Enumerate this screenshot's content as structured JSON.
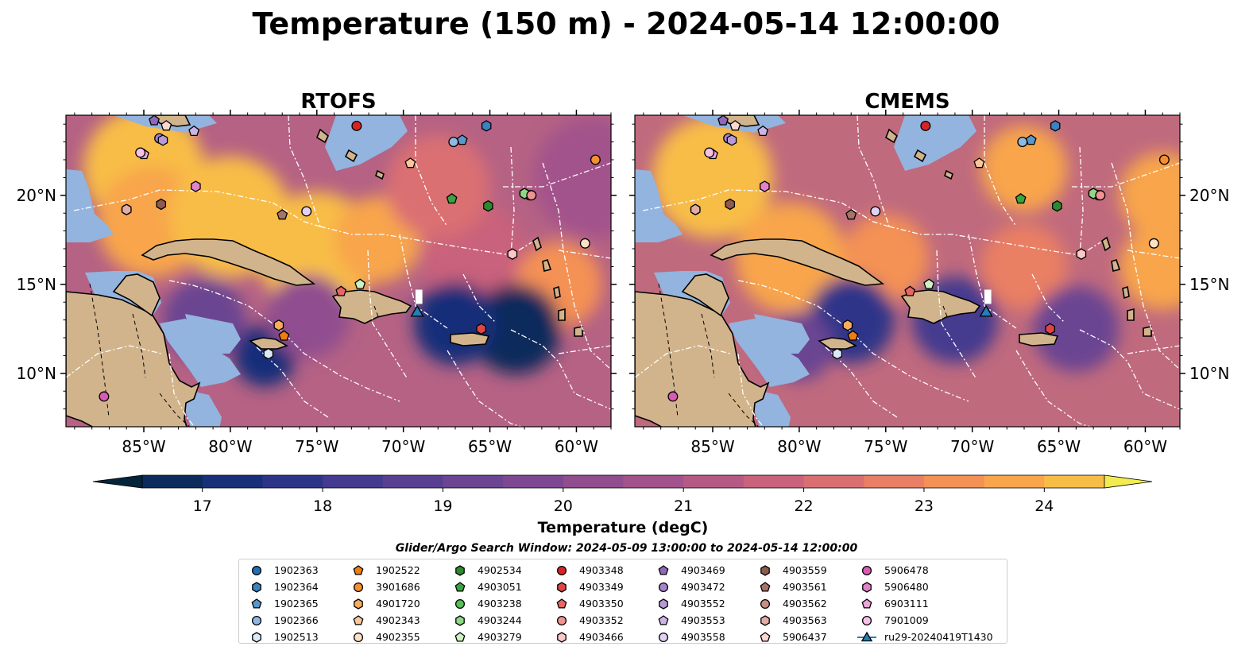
{
  "title": "Temperature (150 m) - 2024-05-14 12:00:00",
  "chart_data": {
    "type": "heatmap",
    "variable": "Temperature",
    "depth": "150 m",
    "time": "2024-05-14 12:00:00",
    "panels": [
      {
        "title": "RTOFS",
        "hotspots": [
          {
            "lon": -85.0,
            "lat": 21.5,
            "value": 24.5,
            "r": 3.5
          },
          {
            "lon": -84.5,
            "lat": 18.5,
            "value": 24.3,
            "r": 3.2
          },
          {
            "lon": -80.0,
            "lat": 18.8,
            "value": 24.6,
            "r": 3.5
          },
          {
            "lon": -75.0,
            "lat": 16.8,
            "value": 24.5,
            "r": 3.5
          },
          {
            "lon": -71.5,
            "lat": 17.5,
            "value": 24.2,
            "r": 2.5
          },
          {
            "lon": -66.0,
            "lat": 16.8,
            "value": 22.3,
            "r": 3.0
          },
          {
            "lon": -61.0,
            "lat": 15.0,
            "value": 23.5,
            "r": 2.5
          },
          {
            "lon": -63.5,
            "lat": 12.5,
            "value": 17.4,
            "r": 2.6
          },
          {
            "lon": -67.0,
            "lat": 12.8,
            "value": 17.8,
            "r": 2.4
          },
          {
            "lon": -78.0,
            "lat": 11.0,
            "value": 17.6,
            "r": 1.8
          },
          {
            "lon": -81.5,
            "lat": 13.0,
            "value": 19.5,
            "r": 2.4
          },
          {
            "lon": -75.5,
            "lat": 13.2,
            "value": 20.6,
            "r": 2.4
          },
          {
            "lon": -68.0,
            "lat": 20.5,
            "value": 22.5,
            "r": 3.0
          },
          {
            "lon": -59.0,
            "lat": 21.0,
            "value": 21.0,
            "r": 3.5
          }
        ]
      },
      {
        "title": "CMEMS",
        "hotspots": [
          {
            "lon": -85.0,
            "lat": 21.0,
            "value": 24.5,
            "r": 3.5
          },
          {
            "lon": -80.5,
            "lat": 16.5,
            "value": 24.0,
            "r": 3.2
          },
          {
            "lon": -75.0,
            "lat": 16.5,
            "value": 23.5,
            "r": 2.5
          },
          {
            "lon": -67.0,
            "lat": 21.5,
            "value": 24.0,
            "r": 2.5
          },
          {
            "lon": -59.0,
            "lat": 20.0,
            "value": 24.2,
            "r": 2.5
          },
          {
            "lon": -59.0,
            "lat": 16.0,
            "value": 24.0,
            "r": 2.5
          },
          {
            "lon": -67.0,
            "lat": 16.0,
            "value": 23.0,
            "r": 2.5
          },
          {
            "lon": -77.0,
            "lat": 13.0,
            "value": 18.0,
            "r": 2.5
          },
          {
            "lon": -71.0,
            "lat": 13.0,
            "value": 18.6,
            "r": 2.5
          },
          {
            "lon": -64.0,
            "lat": 12.5,
            "value": 19.8,
            "r": 2.5
          },
          {
            "lon": -80.0,
            "lat": 11.5,
            "value": 19.8,
            "r": 2.0
          }
        ]
      }
    ],
    "extent": {
      "lon": [
        -89.5,
        -58.0
      ],
      "lat": [
        7.0,
        24.5
      ]
    },
    "xticks": [
      {
        "lon": -85,
        "label": "85°W"
      },
      {
        "lon": -80,
        "label": "80°W"
      },
      {
        "lon": -75,
        "label": "75°W"
      },
      {
        "lon": -70,
        "label": "70°W"
      },
      {
        "lon": -65,
        "label": "65°W"
      },
      {
        "lon": -60,
        "label": "60°W"
      }
    ],
    "yticks": [
      {
        "lat": 20,
        "label": "20°N"
      },
      {
        "lat": 15,
        "label": "15°N"
      },
      {
        "lat": 10,
        "label": "10°N"
      }
    ],
    "colorbar": {
      "label": "Temperature (degC)",
      "min": 16.5,
      "max": 24.5,
      "step": 0.5,
      "ticks": [
        17,
        18,
        19,
        20,
        21,
        22,
        23,
        24
      ],
      "extend": "both",
      "colors": [
        "#03253b",
        "#0b2b5c",
        "#182f79",
        "#2d3589",
        "#443a8f",
        "#593f92",
        "#6b4492",
        "#7d4891",
        "#904e8f",
        "#a3538b",
        "#b65a85",
        "#c9627c",
        "#da6f72",
        "#e97f64",
        "#f49155",
        "#f8a54b",
        "#f8bd46",
        "#f6d445",
        "#f3ec50"
      ]
    },
    "glider": {
      "name": "ru29-20240419T1430",
      "lon": -69.2,
      "lat": 13.4,
      "track": [
        [
          -69.3,
          14.7
        ],
        [
          -68.9,
          14.7
        ],
        [
          -68.9,
          13.9
        ],
        [
          -69.3,
          13.9
        ]
      ]
    },
    "floats": [
      {
        "id": "1902363",
        "lon": -63.0,
        "lat": 20.1
      },
      {
        "id": "1902364",
        "lon": -65.2,
        "lat": 23.9
      },
      {
        "id": "1902365",
        "lon": -66.6,
        "lat": 23.1
      },
      {
        "id": "1902366",
        "lon": -67.1,
        "lat": 23.0
      },
      {
        "id": "1902513",
        "lon": -77.8,
        "lat": 11.1
      },
      {
        "id": "1902522",
        "lon": -76.9,
        "lat": 12.1
      },
      {
        "id": "3901686",
        "lon": -58.9,
        "lat": 22.0
      },
      {
        "id": "4901720",
        "lon": -77.2,
        "lat": 12.7
      },
      {
        "id": "4902343",
        "lon": -69.6,
        "lat": 21.8
      },
      {
        "id": "4902355",
        "lon": -59.5,
        "lat": 17.3
      },
      {
        "id": "4902534",
        "lon": -65.1,
        "lat": 19.4
      },
      {
        "id": "4903051",
        "lon": -67.2,
        "lat": 19.8
      },
      {
        "id": "4903238",
        "lon": -62.7,
        "lat": 20.0
      },
      {
        "id": "4903244",
        "lon": -63.0,
        "lat": 20.1
      },
      {
        "id": "4903279",
        "lon": -72.5,
        "lat": 15.0
      },
      {
        "id": "4903348",
        "lon": -72.7,
        "lat": 23.9
      },
      {
        "id": "4903349",
        "lon": -65.5,
        "lat": 12.5
      },
      {
        "id": "4903350",
        "lon": -73.6,
        "lat": 14.6
      },
      {
        "id": "4903352",
        "lon": -62.6,
        "lat": 20.0
      },
      {
        "id": "4903466",
        "lon": -63.7,
        "lat": 16.7
      },
      {
        "id": "4903469",
        "lon": -84.4,
        "lat": 24.2
      },
      {
        "id": "4903472",
        "lon": -84.1,
        "lat": 23.2
      },
      {
        "id": "4903552",
        "lon": -83.9,
        "lat": 23.1
      },
      {
        "id": "4903553",
        "lon": -82.1,
        "lat": 23.6
      },
      {
        "id": "4903558",
        "lon": -75.6,
        "lat": 19.1
      },
      {
        "id": "4903559",
        "lon": -84.0,
        "lat": 19.5
      },
      {
        "id": "4903561",
        "lon": -77.0,
        "lat": 18.9
      },
      {
        "id": "4903562",
        "lon": -86.0,
        "lat": 19.2
      },
      {
        "id": "4903563",
        "lon": -86.0,
        "lat": 19.2
      },
      {
        "id": "5906437",
        "lon": -83.7,
        "lat": 23.9
      },
      {
        "id": "5906478",
        "lon": -87.3,
        "lat": 8.7
      },
      {
        "id": "5906480",
        "lon": -82.0,
        "lat": 20.5
      },
      {
        "id": "6903111",
        "lon": -85.0,
        "lat": 22.3
      },
      {
        "id": "7901009",
        "lon": -85.2,
        "lat": 22.4
      }
    ]
  },
  "legend": {
    "title": "Glider/Argo Search Window: 2024-05-09 13:00:00 to 2024-05-14 12:00:00",
    "items": [
      {
        "label": "1902363",
        "shape": "circle",
        "color": "#1f6fb3"
      },
      {
        "label": "1902364",
        "shape": "hexagon",
        "color": "#3b82c0"
      },
      {
        "label": "1902365",
        "shape": "pentagon",
        "color": "#5a97cd"
      },
      {
        "label": "1902366",
        "shape": "circle",
        "color": "#8fb9e2"
      },
      {
        "label": "1902513",
        "shape": "hexagon",
        "color": "#dbeaf7"
      },
      {
        "label": "1902522",
        "shape": "pentagon",
        "color": "#f07d12"
      },
      {
        "label": "3901686",
        "shape": "circle",
        "color": "#f68f2f"
      },
      {
        "label": "4901720",
        "shape": "hexagon",
        "color": "#f9ac5c"
      },
      {
        "label": "4902343",
        "shape": "pentagon",
        "color": "#fbc79a"
      },
      {
        "label": "4902355",
        "shape": "circle",
        "color": "#fde1c6"
      },
      {
        "label": "4902534",
        "shape": "hexagon",
        "color": "#2b8a2f"
      },
      {
        "label": "4903051",
        "shape": "pentagon",
        "color": "#3aa53e"
      },
      {
        "label": "4903238",
        "shape": "circle",
        "color": "#58bf58"
      },
      {
        "label": "4903244",
        "shape": "hexagon",
        "color": "#8ed885"
      },
      {
        "label": "4903279",
        "shape": "pentagon",
        "color": "#cdf2c2"
      },
      {
        "label": "4903348",
        "shape": "circle",
        "color": "#d62424"
      },
      {
        "label": "4903349",
        "shape": "hexagon",
        "color": "#df4545"
      },
      {
        "label": "4903350",
        "shape": "pentagon",
        "color": "#e86666"
      },
      {
        "label": "4903352",
        "shape": "circle",
        "color": "#f29393"
      },
      {
        "label": "4903466",
        "shape": "hexagon",
        "color": "#fbc8c8"
      },
      {
        "label": "4903469",
        "shape": "pentagon",
        "color": "#8f68bb"
      },
      {
        "label": "4903472",
        "shape": "circle",
        "color": "#a685cc"
      },
      {
        "label": "4903552",
        "shape": "hexagon",
        "color": "#b89ad8"
      },
      {
        "label": "4903553",
        "shape": "pentagon",
        "color": "#ccb5e6"
      },
      {
        "label": "4903558",
        "shape": "circle",
        "color": "#e1d2f3"
      },
      {
        "label": "4903559",
        "shape": "hexagon",
        "color": "#8c5a4e"
      },
      {
        "label": "4903561",
        "shape": "pentagon",
        "color": "#a67466"
      },
      {
        "label": "4903562",
        "shape": "circle",
        "color": "#c98e84"
      },
      {
        "label": "4903563",
        "shape": "hexagon",
        "color": "#e0aea5"
      },
      {
        "label": "5906437",
        "shape": "pentagon",
        "color": "#fbd7cf"
      },
      {
        "label": "5906478",
        "shape": "circle",
        "color": "#d65bb5"
      },
      {
        "label": "5906480",
        "shape": "hexagon",
        "color": "#e283c7"
      },
      {
        "label": "6903111",
        "shape": "pentagon",
        "color": "#eda6d7"
      },
      {
        "label": "7901009",
        "shape": "circle",
        "color": "#f6c2e6"
      },
      {
        "label": "ru29-20240419T1430",
        "shape": "triangle",
        "color": "#2280b8"
      }
    ]
  },
  "colors": {
    "land": "#d2b48c",
    "shelf": "#93b4de",
    "deep_min": "#03253b",
    "coast": "#000000",
    "eez": "#ffffff"
  }
}
